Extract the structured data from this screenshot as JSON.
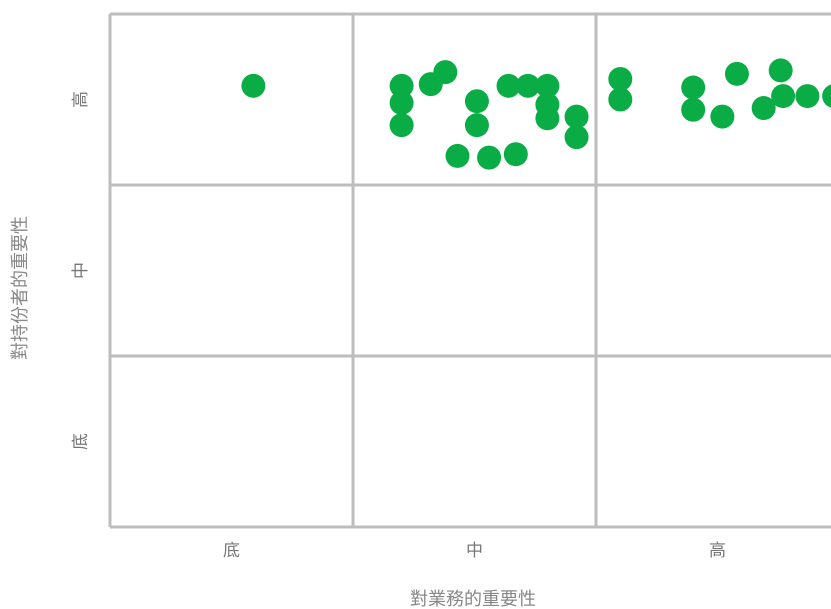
{
  "chart_data": {
    "type": "scatter",
    "title": "",
    "xlabel": "對業務的重要性",
    "ylabel": "對持份者的重要性",
    "x_categories": [
      "底",
      "中",
      "高"
    ],
    "y_categories": [
      "底",
      "中",
      "高"
    ],
    "xlim": [
      0,
      3
    ],
    "ylim": [
      0,
      3
    ],
    "grid": true,
    "legend": "none",
    "point_color": "#0aad45",
    "grid_color": "#bdbdbd",
    "points": [
      {
        "x": 0.59,
        "y": 2.58
      },
      {
        "x": 1.2,
        "y": 2.58
      },
      {
        "x": 1.2,
        "y": 2.48
      },
      {
        "x": 1.2,
        "y": 2.35
      },
      {
        "x": 1.32,
        "y": 2.59
      },
      {
        "x": 1.38,
        "y": 2.66
      },
      {
        "x": 1.43,
        "y": 2.17
      },
      {
        "x": 1.51,
        "y": 2.49
      },
      {
        "x": 1.51,
        "y": 2.35
      },
      {
        "x": 1.56,
        "y": 2.16
      },
      {
        "x": 1.64,
        "y": 2.58
      },
      {
        "x": 1.67,
        "y": 2.18
      },
      {
        "x": 1.72,
        "y": 2.58
      },
      {
        "x": 1.8,
        "y": 2.58
      },
      {
        "x": 1.8,
        "y": 2.47
      },
      {
        "x": 1.8,
        "y": 2.39
      },
      {
        "x": 1.92,
        "y": 2.4
      },
      {
        "x": 1.92,
        "y": 2.28
      },
      {
        "x": 2.1,
        "y": 2.62
      },
      {
        "x": 2.1,
        "y": 2.5
      },
      {
        "x": 2.4,
        "y": 2.57
      },
      {
        "x": 2.4,
        "y": 2.44
      },
      {
        "x": 2.52,
        "y": 2.4
      },
      {
        "x": 2.58,
        "y": 2.65
      },
      {
        "x": 2.69,
        "y": 2.45
      },
      {
        "x": 2.76,
        "y": 2.67
      },
      {
        "x": 2.77,
        "y": 2.52
      },
      {
        "x": 2.87,
        "y": 2.52
      },
      {
        "x": 2.98,
        "y": 2.52
      }
    ]
  }
}
